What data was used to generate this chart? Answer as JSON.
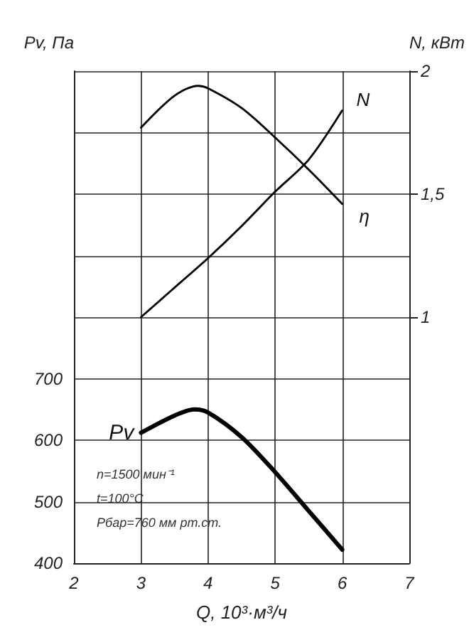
{
  "chart_data": {
    "type": "line",
    "xlabel": "Q, 10³·м³/ч",
    "ylabel": "Pv, Па",
    "y2label": "N, кВт",
    "xlim": [
      2,
      7
    ],
    "xticks": [
      2,
      3,
      4,
      5,
      6,
      7
    ],
    "ylim": [
      400,
      1200
    ],
    "yticks": [
      400,
      500,
      600,
      700,
      {
        "value": 800,
        "label": null
      },
      {
        "value": 900,
        "label": null
      },
      {
        "value": 1000,
        "label": null
      },
      {
        "value": 1100,
        "label": null
      },
      {
        "value": 1200,
        "label": null
      }
    ],
    "y2lim": [
      0,
      2
    ],
    "y2ticks": [
      1,
      {
        "value": 1.5,
        "label": "1,5"
      },
      2
    ],
    "grid": true,
    "legend": false,
    "marker": "none",
    "line_style": "solid",
    "series": [
      {
        "name": "Pv",
        "color": "#000000",
        "x": [
          3,
          3.5,
          3.8,
          4,
          4.5,
          5,
          5.5,
          6
        ],
        "values": [
          612,
          640,
          650,
          645,
          605,
          548,
          485,
          422
        ]
      },
      {
        "name": "N",
        "color": "#000000",
        "axis": "y2",
        "x": [
          3,
          3.5,
          4,
          4.5,
          5,
          5.5,
          6
        ],
        "values": [
          1.0,
          1.12,
          1.24,
          1.37,
          1.51,
          1.64,
          1.84
        ]
      },
      {
        "name": "η",
        "color": "#000000",
        "axis": "y2",
        "x": [
          3,
          3.5,
          3.85,
          4,
          4.5,
          5,
          5.5,
          6
        ],
        "values": [
          1.77,
          1.9,
          1.94,
          1.93,
          1.85,
          1.73,
          1.6,
          1.46
        ]
      }
    ],
    "annotations": [
      "n=1500 мин⁻¹",
      "t=100°C",
      "Рбар=760 мм рт.ст."
    ]
  }
}
